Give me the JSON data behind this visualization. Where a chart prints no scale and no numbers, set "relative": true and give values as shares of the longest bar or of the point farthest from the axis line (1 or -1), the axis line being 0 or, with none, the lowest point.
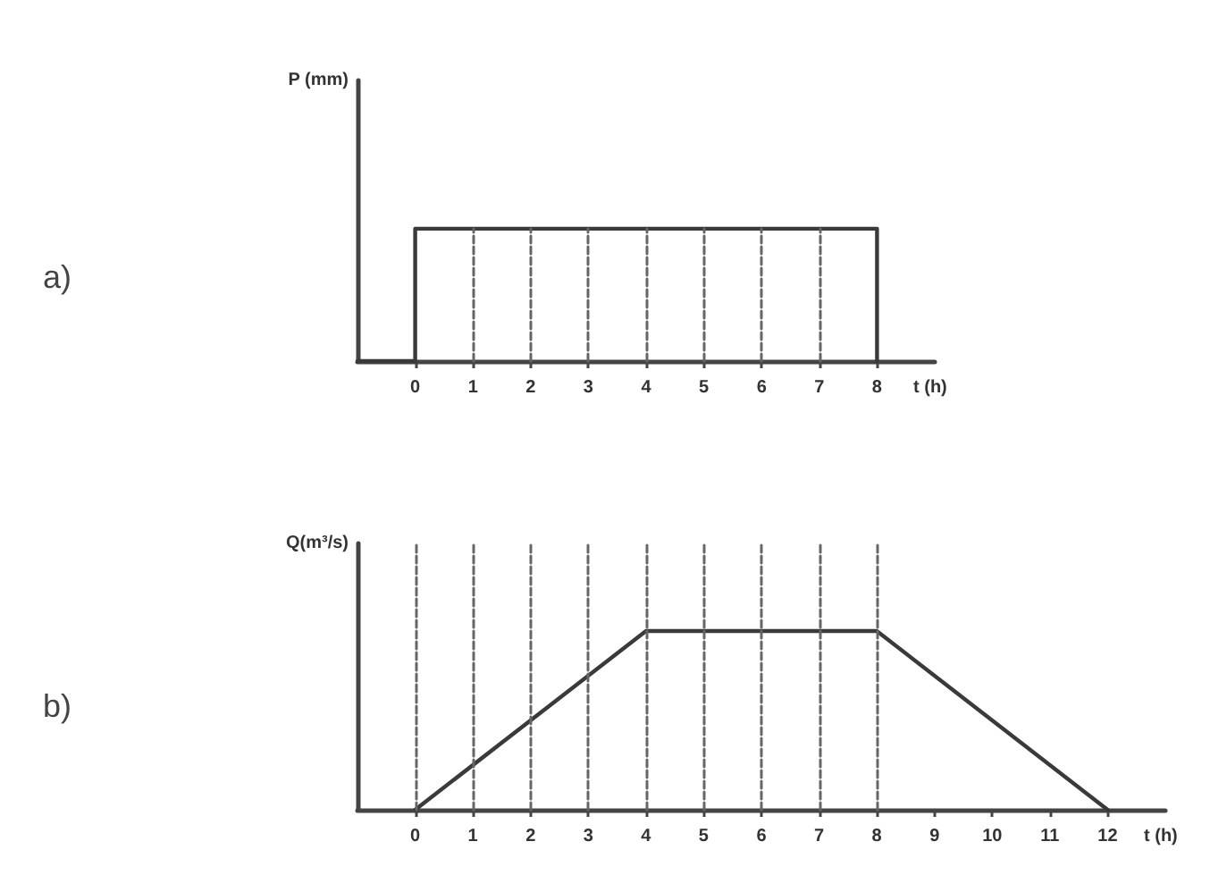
{
  "chart_data": [
    {
      "type": "step",
      "relative": true,
      "ylabel": "P (mm)",
      "xlabel": "t (h)",
      "annotations": [
        "a)"
      ],
      "x": [
        -1,
        0,
        8
      ],
      "values": [
        0,
        1,
        0
      ],
      "color": "#3a3a3a",
      "xlim": [
        -1,
        9
      ],
      "xticks": [
        0,
        1,
        2,
        3,
        4,
        5,
        6,
        7,
        8
      ],
      "tick_labels": "x",
      "grid": false,
      "ref_lines": [
        {
          "axis": "x",
          "value": 1,
          "line_style": "dashed",
          "color": "#666666"
        },
        {
          "axis": "x",
          "value": 2,
          "line_style": "dashed",
          "color": "#666666"
        },
        {
          "axis": "x",
          "value": 3,
          "line_style": "dashed",
          "color": "#666666"
        },
        {
          "axis": "x",
          "value": 4,
          "line_style": "dashed",
          "color": "#666666"
        },
        {
          "axis": "x",
          "value": 5,
          "line_style": "dashed",
          "color": "#666666"
        },
        {
          "axis": "x",
          "value": 6,
          "line_style": "dashed",
          "color": "#666666"
        },
        {
          "axis": "x",
          "value": 7,
          "line_style": "dashed",
          "color": "#666666"
        }
      ]
    },
    {
      "type": "line",
      "relative": true,
      "ylabel": "Q(m³/s)",
      "xlabel": "t (h)",
      "annotations": [
        "b)"
      ],
      "x": [
        0,
        4,
        8,
        12
      ],
      "values": [
        0,
        1,
        1,
        0
      ],
      "color": "#3a3a3a",
      "xlim": [
        -1,
        13
      ],
      "xticks": [
        0,
        1,
        2,
        3,
        4,
        5,
        6,
        7,
        8,
        9,
        10,
        11,
        12
      ],
      "tick_labels": "x",
      "grid": false,
      "ref_lines": [
        {
          "axis": "x",
          "value": 0,
          "line_style": "dashed",
          "color": "#666666"
        },
        {
          "axis": "x",
          "value": 1,
          "line_style": "dashed",
          "color": "#666666"
        },
        {
          "axis": "x",
          "value": 2,
          "line_style": "dashed",
          "color": "#666666"
        },
        {
          "axis": "x",
          "value": 3,
          "line_style": "dashed",
          "color": "#666666"
        },
        {
          "axis": "x",
          "value": 4,
          "line_style": "dashed",
          "color": "#666666"
        },
        {
          "axis": "x",
          "value": 5,
          "line_style": "dashed",
          "color": "#666666"
        },
        {
          "axis": "x",
          "value": 6,
          "line_style": "dashed",
          "color": "#666666"
        },
        {
          "axis": "x",
          "value": 7,
          "line_style": "dashed",
          "color": "#666666"
        },
        {
          "axis": "x",
          "value": 8,
          "line_style": "dashed",
          "color": "#666666"
        }
      ]
    }
  ]
}
